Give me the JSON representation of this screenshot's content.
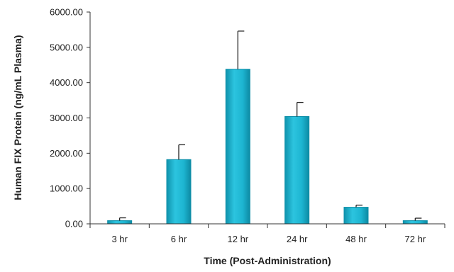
{
  "chart_data": {
    "type": "bar",
    "title": "",
    "xlabel": "Time (Post-Administration)",
    "ylabel": "Human FIX Protein (ng/mL Plasma)",
    "categories": [
      "3 hr",
      "6 hr",
      "12 hr",
      "24 hr",
      "48 hr",
      "72 hr"
    ],
    "values": [
      90,
      1820,
      4380,
      3040,
      470,
      90
    ],
    "error_upper": [
      80,
      420,
      1080,
      400,
      60,
      70
    ],
    "ylim": [
      0,
      6000
    ],
    "yticks": [
      "0.00",
      "1000.00",
      "2000.00",
      "3000.00",
      "4000.00",
      "5000.00",
      "6000.00"
    ],
    "grid": false,
    "legend": "none",
    "bar_color": "#1fb8d4",
    "bar_edge_color": "#0e8fa8"
  }
}
